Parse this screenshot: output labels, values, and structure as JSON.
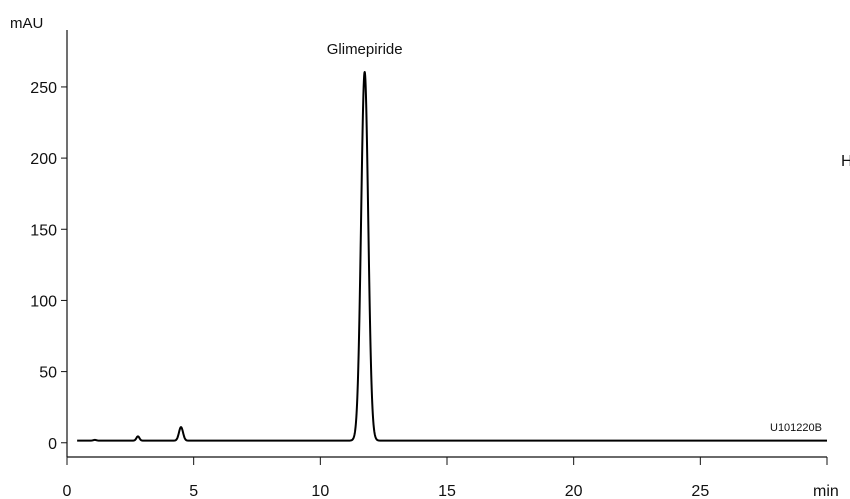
{
  "chart_data": {
    "type": "line",
    "xlabel": "min",
    "ylabel": "mAU",
    "xlim": [
      0,
      30
    ],
    "ylim": [
      -10,
      290
    ],
    "x_ticks": [
      0,
      5,
      10,
      15,
      20,
      25
    ],
    "y_ticks": [
      0,
      50,
      100,
      150,
      200,
      250
    ],
    "grid": false,
    "trace_label": "U101220B",
    "edge_text": "H",
    "baseline": 1.5,
    "peaks": [
      {
        "rt": 1.1,
        "height": 0.5,
        "width": 0.06,
        "label": ""
      },
      {
        "rt": 2.8,
        "height": 3,
        "width": 0.06,
        "label": ""
      },
      {
        "rt": 4.5,
        "height": 9.5,
        "width": 0.08,
        "label": ""
      },
      {
        "rt": 11.75,
        "height": 259,
        "width": 0.14,
        "label": "Glimepiride"
      }
    ]
  }
}
